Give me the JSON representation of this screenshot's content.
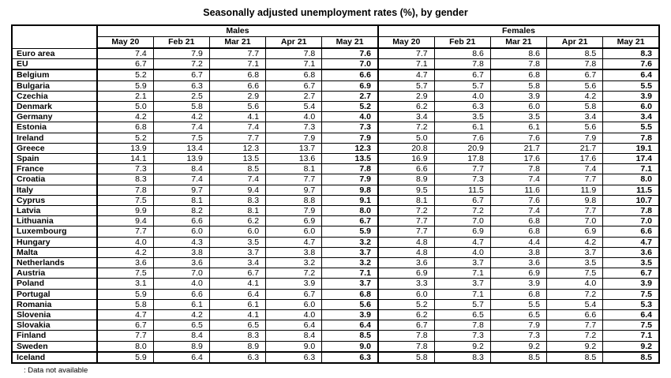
{
  "title": "Seasonally adjusted unemployment rates (%), by gender",
  "footnote": ": Data not available",
  "table": {
    "groups": [
      {
        "label": "Males",
        "columns": [
          "May 20",
          "Feb 21",
          "Mar 21",
          "Apr 21",
          "May 21"
        ]
      },
      {
        "label": "Females",
        "columns": [
          "May 20",
          "Feb 21",
          "Mar 21",
          "Apr 21",
          "May 21"
        ]
      }
    ],
    "separators_after": [
      "EU",
      "Sweden"
    ],
    "rows": [
      {
        "country": "Euro area",
        "males": [
          "7.4",
          "7.9",
          "7.7",
          "7.8",
          "7.6"
        ],
        "females": [
          "7.7",
          "8.6",
          "8.6",
          "8.5",
          "8.3"
        ]
      },
      {
        "country": "EU",
        "males": [
          "6.7",
          "7.2",
          "7.1",
          "7.1",
          "7.0"
        ],
        "females": [
          "7.1",
          "7.8",
          "7.8",
          "7.8",
          "7.6"
        ]
      },
      {
        "country": "Belgium",
        "males": [
          "5.2",
          "6.7",
          "6.8",
          "6.8",
          "6.6"
        ],
        "females": [
          "4.7",
          "6.7",
          "6.8",
          "6.7",
          "6.4"
        ]
      },
      {
        "country": "Bulgaria",
        "males": [
          "5.9",
          "6.3",
          "6.6",
          "6.7",
          "6.9"
        ],
        "females": [
          "5.7",
          "5.7",
          "5.8",
          "5.6",
          "5.5"
        ]
      },
      {
        "country": "Czechia",
        "males": [
          "2.1",
          "2.5",
          "2.9",
          "2.7",
          "2.7"
        ],
        "females": [
          "2.9",
          "4.0",
          "3.9",
          "4.2",
          "3.9"
        ]
      },
      {
        "country": "Denmark",
        "males": [
          "5.0",
          "5.8",
          "5.6",
          "5.4",
          "5.2"
        ],
        "females": [
          "6.2",
          "6.3",
          "6.0",
          "5.8",
          "6.0"
        ]
      },
      {
        "country": "Germany",
        "males": [
          "4.2",
          "4.2",
          "4.1",
          "4.0",
          "4.0"
        ],
        "females": [
          "3.4",
          "3.5",
          "3.5",
          "3.4",
          "3.4"
        ]
      },
      {
        "country": "Estonia",
        "males": [
          "6.8",
          "7.4",
          "7.4",
          "7.3",
          "7.3"
        ],
        "females": [
          "7.2",
          "6.1",
          "6.1",
          "5.6",
          "5.5"
        ]
      },
      {
        "country": "Ireland",
        "males": [
          "5.2",
          "7.5",
          "7.7",
          "7.9",
          "7.9"
        ],
        "females": [
          "5.0",
          "7.6",
          "7.6",
          "7.9",
          "7.8"
        ]
      },
      {
        "country": "Greece",
        "males": [
          "13.9",
          "13.4",
          "12.3",
          "13.7",
          "12.3"
        ],
        "females": [
          "20.8",
          "20.9",
          "21.7",
          "21.7",
          "19.1"
        ]
      },
      {
        "country": "Spain",
        "males": [
          "14.1",
          "13.9",
          "13.5",
          "13.6",
          "13.5"
        ],
        "females": [
          "16.9",
          "17.8",
          "17.6",
          "17.6",
          "17.4"
        ]
      },
      {
        "country": "France",
        "males": [
          "7.3",
          "8.4",
          "8.5",
          "8.1",
          "7.8"
        ],
        "females": [
          "6.6",
          "7.7",
          "7.8",
          "7.4",
          "7.1"
        ]
      },
      {
        "country": "Croatia",
        "males": [
          "8.3",
          "7.4",
          "7.4",
          "7.7",
          "7.9"
        ],
        "females": [
          "8.9",
          "7.3",
          "7.4",
          "7.7",
          "8.0"
        ]
      },
      {
        "country": "Italy",
        "males": [
          "7.8",
          "9.7",
          "9.4",
          "9.7",
          "9.8"
        ],
        "females": [
          "9.5",
          "11.5",
          "11.6",
          "11.9",
          "11.5"
        ]
      },
      {
        "country": "Cyprus",
        "males": [
          "7.5",
          "8.1",
          "8.3",
          "8.8",
          "9.1"
        ],
        "females": [
          "8.1",
          "6.7",
          "7.6",
          "9.8",
          "10.7"
        ]
      },
      {
        "country": "Latvia",
        "males": [
          "9.9",
          "8.2",
          "8.1",
          "7.9",
          "8.0"
        ],
        "females": [
          "7.2",
          "7.2",
          "7.4",
          "7.7",
          "7.8"
        ]
      },
      {
        "country": "Lithuania",
        "males": [
          "9.4",
          "6.6",
          "6.2",
          "6.9",
          "6.7"
        ],
        "females": [
          "7.7",
          "7.0",
          "6.8",
          "7.0",
          "7.0"
        ]
      },
      {
        "country": "Luxembourg",
        "males": [
          "7.7",
          "6.0",
          "6.0",
          "6.0",
          "5.9"
        ],
        "females": [
          "7.7",
          "6.9",
          "6.8",
          "6.9",
          "6.6"
        ]
      },
      {
        "country": "Hungary",
        "males": [
          "4.0",
          "4.3",
          "3.5",
          "4.7",
          "3.2"
        ],
        "females": [
          "4.8",
          "4.7",
          "4.4",
          "4.2",
          "4.7"
        ]
      },
      {
        "country": "Malta",
        "males": [
          "4.2",
          "3.8",
          "3.7",
          "3.8",
          "3.7"
        ],
        "females": [
          "4.8",
          "4.0",
          "3.8",
          "3.7",
          "3.6"
        ]
      },
      {
        "country": "Netherlands",
        "males": [
          "3.6",
          "3.6",
          "3.4",
          "3.2",
          "3.2"
        ],
        "females": [
          "3.6",
          "3.7",
          "3.6",
          "3.5",
          "3.5"
        ]
      },
      {
        "country": "Austria",
        "males": [
          "7.5",
          "7.0",
          "6.7",
          "7.2",
          "7.1"
        ],
        "females": [
          "6.9",
          "7.1",
          "6.9",
          "7.5",
          "6.7"
        ]
      },
      {
        "country": "Poland",
        "males": [
          "3.1",
          "4.0",
          "4.1",
          "3.9",
          "3.7"
        ],
        "females": [
          "3.3",
          "3.7",
          "3.9",
          "4.0",
          "3.9"
        ]
      },
      {
        "country": "Portugal",
        "males": [
          "5.9",
          "6.6",
          "6.4",
          "6.7",
          "6.8"
        ],
        "females": [
          "6.0",
          "7.1",
          "6.8",
          "7.2",
          "7.5"
        ]
      },
      {
        "country": "Romania",
        "males": [
          "5.8",
          "6.1",
          "6.1",
          "6.0",
          "5.6"
        ],
        "females": [
          "5.2",
          "5.7",
          "5.5",
          "5.4",
          "5.3"
        ]
      },
      {
        "country": "Slovenia",
        "males": [
          "4.7",
          "4.2",
          "4.1",
          "4.0",
          "3.9"
        ],
        "females": [
          "6.2",
          "6.5",
          "6.5",
          "6.6",
          "6.4"
        ]
      },
      {
        "country": "Slovakia",
        "males": [
          "6.7",
          "6.5",
          "6.5",
          "6.4",
          "6.4"
        ],
        "females": [
          "6.7",
          "7.8",
          "7.9",
          "7.7",
          "7.5"
        ]
      },
      {
        "country": "Finland",
        "males": [
          "7.7",
          "8.4",
          "8.3",
          "8.4",
          "8.5"
        ],
        "females": [
          "7.8",
          "7.3",
          "7.3",
          "7.2",
          "7.1"
        ]
      },
      {
        "country": "Sweden",
        "males": [
          "8.0",
          "8.9",
          "8.9",
          "9.0",
          "9.0"
        ],
        "females": [
          "7.8",
          "9.2",
          "9.2",
          "9.2",
          "9.2"
        ]
      },
      {
        "country": "Iceland",
        "males": [
          "5.9",
          "6.4",
          "6.3",
          "6.3",
          "6.3"
        ],
        "females": [
          "5.8",
          "8.3",
          "8.5",
          "8.5",
          "8.5"
        ]
      }
    ]
  }
}
